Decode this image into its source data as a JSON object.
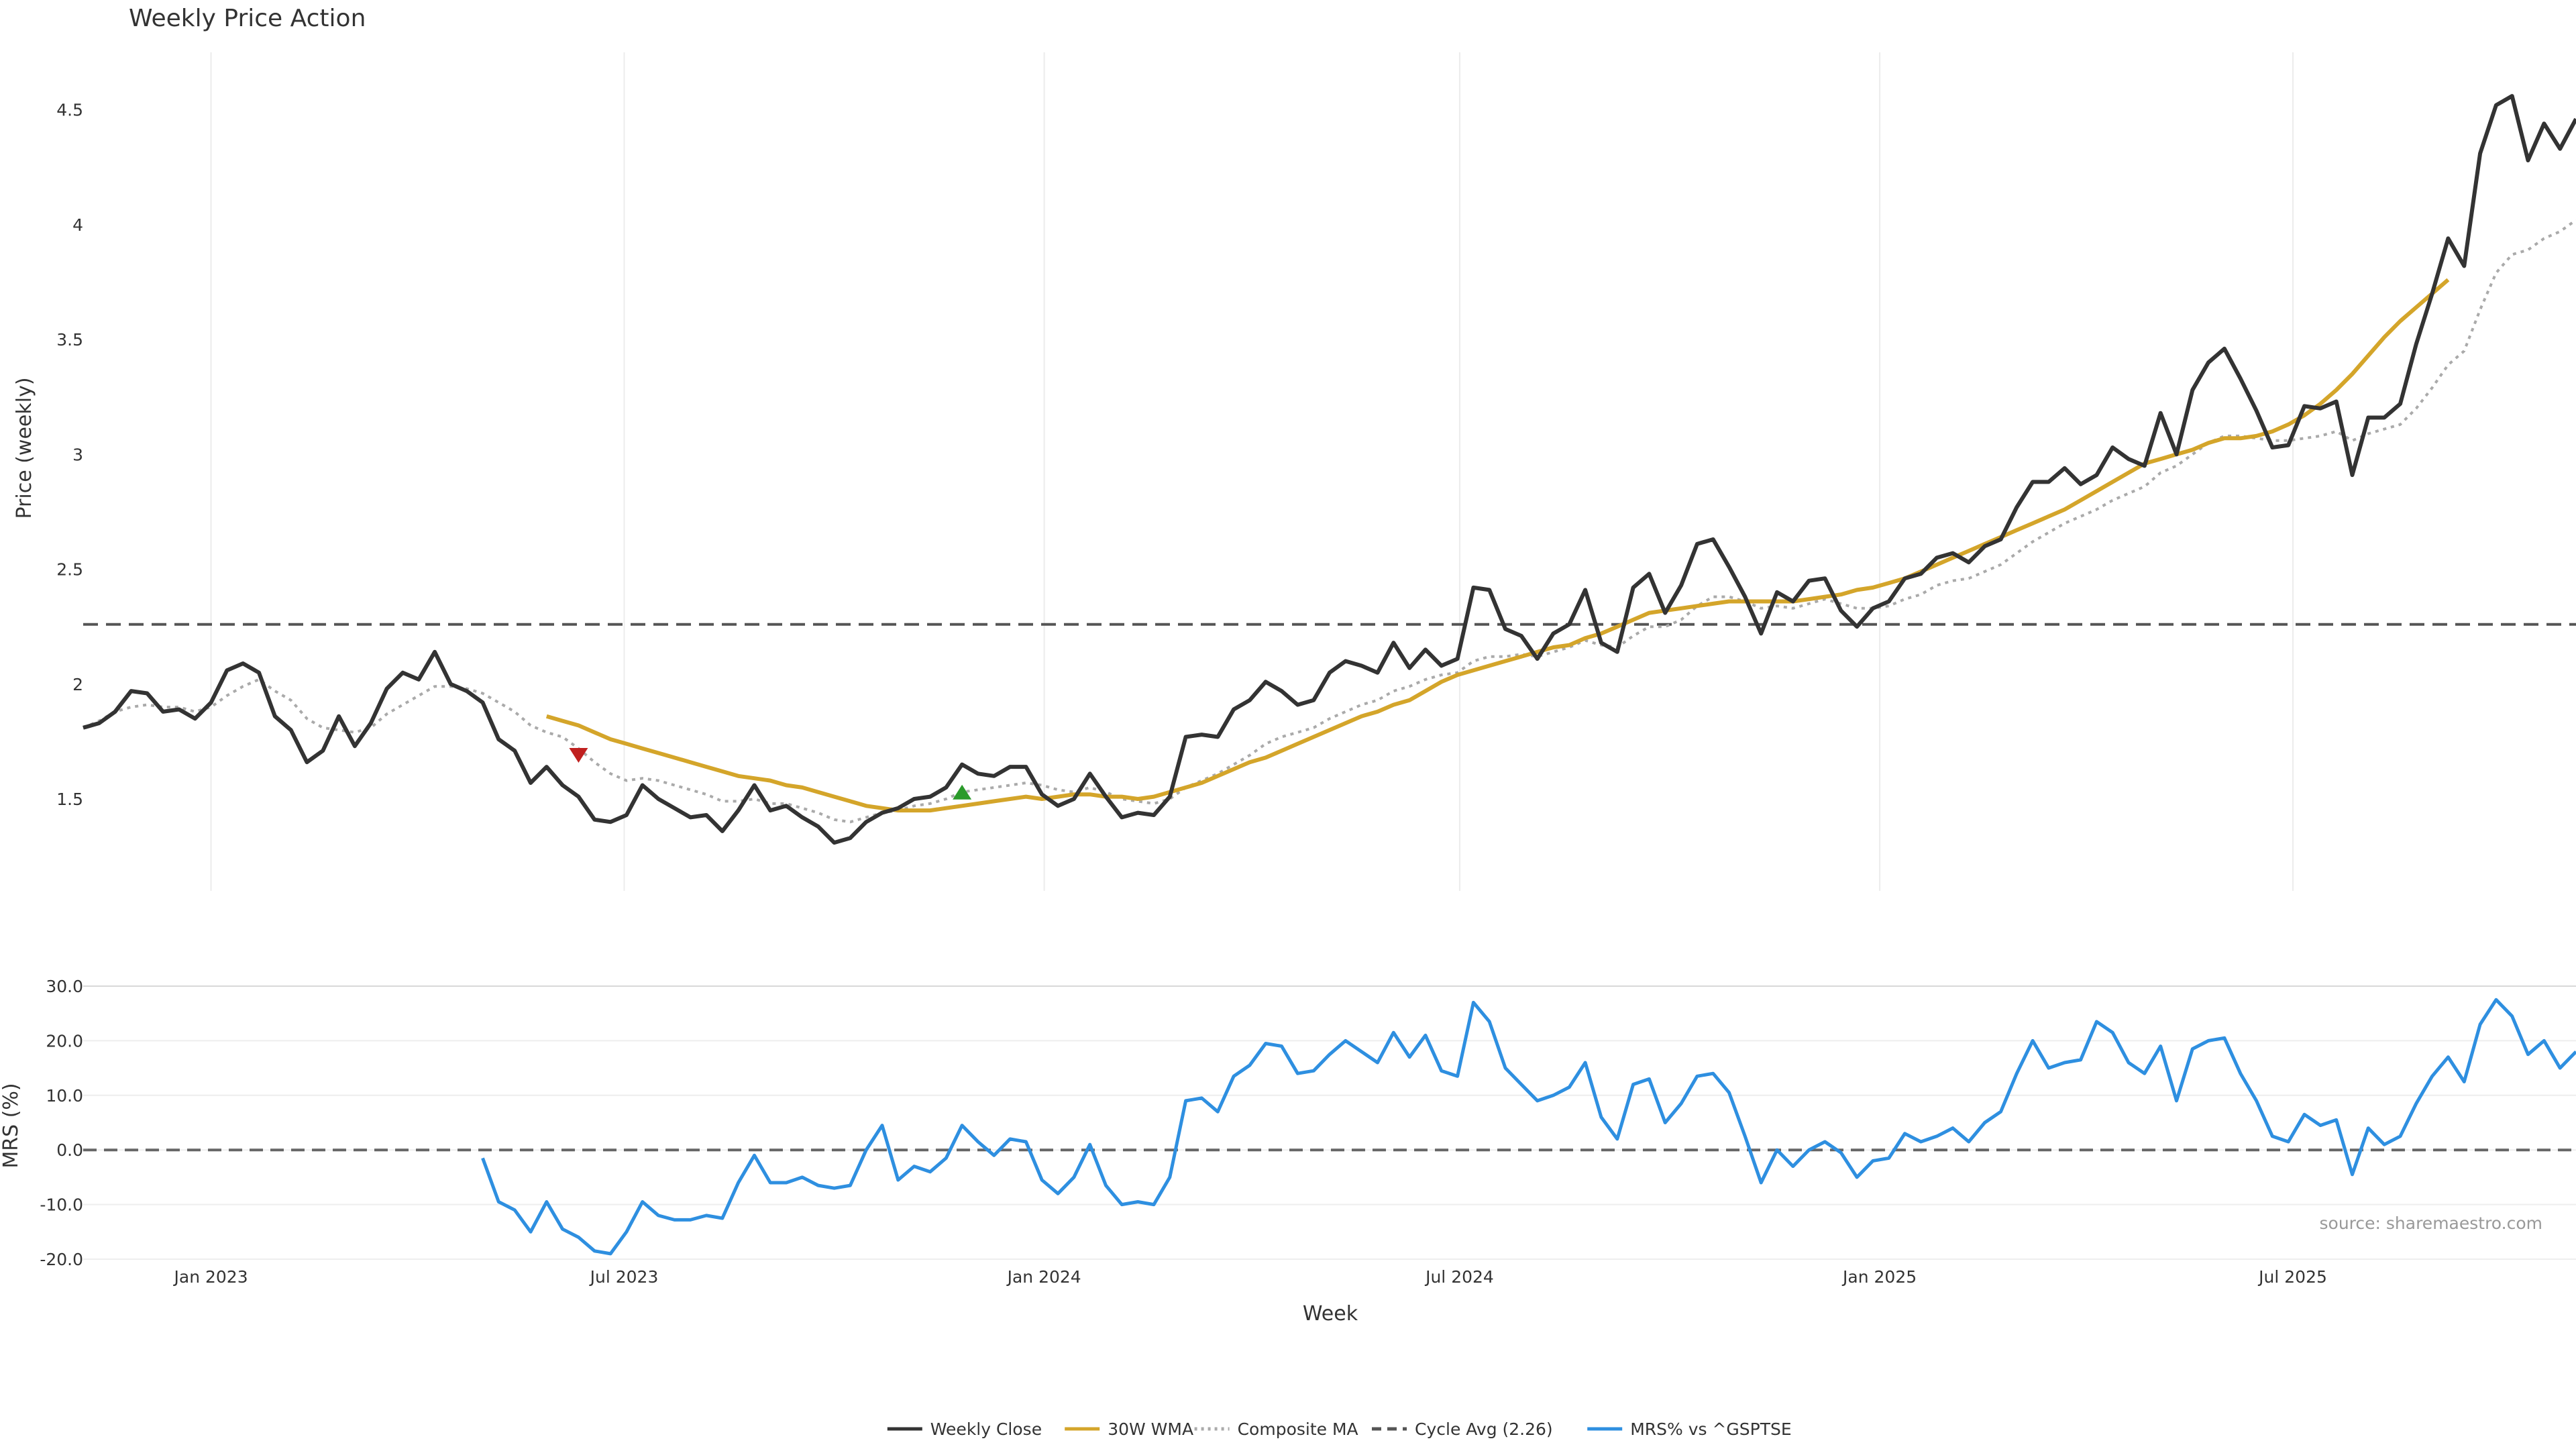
{
  "chart_data": [
    {
      "type": "line",
      "title": "Weekly Price Action",
      "ylabel": "Price (weekly)",
      "ylim": [
        1.1,
        4.75
      ],
      "yticks": [
        "1.5",
        "2",
        "2.5",
        "3",
        "3.5",
        "4",
        "4.5"
      ],
      "x_start": "2022-11-06",
      "x_end": "2025-10-26",
      "grid": "vertical",
      "series": [
        {
          "name": "Weekly Close",
          "color": "#333333",
          "style": "solid",
          "values": [
            1.81,
            1.83,
            1.88,
            1.97,
            1.96,
            1.88,
            1.89,
            1.85,
            1.92,
            2.06,
            2.09,
            2.05,
            1.86,
            1.8,
            1.66,
            1.71,
            1.86,
            1.73,
            1.83,
            1.98,
            2.05,
            2.02,
            2.14,
            2.0,
            1.97,
            1.92,
            1.76,
            1.71,
            1.57,
            1.64,
            1.56,
            1.51,
            1.41,
            1.4,
            1.43,
            1.56,
            1.5,
            1.46,
            1.42,
            1.43,
            1.36,
            1.45,
            1.56,
            1.45,
            1.47,
            1.42,
            1.38,
            1.31,
            1.33,
            1.4,
            1.44,
            1.46,
            1.5,
            1.51,
            1.55,
            1.65,
            1.61,
            1.6,
            1.64,
            1.64,
            1.52,
            1.47,
            1.5,
            1.61,
            1.51,
            1.42,
            1.44,
            1.43,
            1.51,
            1.77,
            1.78,
            1.77,
            1.89,
            1.93,
            2.01,
            1.97,
            1.91,
            1.93,
            2.05,
            2.1,
            2.08,
            2.05,
            2.18,
            2.07,
            2.15,
            2.08,
            2.11,
            2.42,
            2.41,
            2.24,
            2.21,
            2.11,
            2.22,
            2.26,
            2.41,
            2.18,
            2.14,
            2.42,
            2.48,
            2.31,
            2.43,
            2.61,
            2.63,
            2.51,
            2.38,
            2.22,
            2.4,
            2.36,
            2.45,
            2.46,
            2.32,
            2.25,
            2.33,
            2.36,
            2.46,
            2.48,
            2.55,
            2.57,
            2.53,
            2.6,
            2.63,
            2.77,
            2.88,
            2.88,
            2.94,
            2.87,
            2.91,
            3.03,
            2.98,
            2.95,
            3.18,
            3.0,
            3.28,
            3.4,
            3.46,
            3.33,
            3.19,
            3.03,
            3.04,
            3.21,
            3.2,
            3.23,
            2.91,
            3.16,
            3.16,
            3.22,
            3.48,
            3.7,
            3.94,
            3.82,
            4.31,
            4.52,
            4.56,
            4.28,
            4.44,
            4.33,
            4.46
          ]
        },
        {
          "name": "30W WMA",
          "color": "#d4a52a",
          "style": "solid",
          "start_index": 29,
          "values": [
            1.86,
            1.84,
            1.82,
            1.79,
            1.76,
            1.74,
            1.72,
            1.7,
            1.68,
            1.66,
            1.64,
            1.62,
            1.6,
            1.59,
            1.58,
            1.56,
            1.55,
            1.53,
            1.51,
            1.49,
            1.47,
            1.46,
            1.45,
            1.45,
            1.45,
            1.46,
            1.47,
            1.48,
            1.49,
            1.5,
            1.51,
            1.5,
            1.51,
            1.52,
            1.52,
            1.51,
            1.51,
            1.5,
            1.51,
            1.53,
            1.55,
            1.57,
            1.6,
            1.63,
            1.66,
            1.68,
            1.71,
            1.74,
            1.77,
            1.8,
            1.83,
            1.86,
            1.88,
            1.91,
            1.93,
            1.97,
            2.01,
            2.04,
            2.06,
            2.08,
            2.1,
            2.12,
            2.14,
            2.16,
            2.17,
            2.2,
            2.22,
            2.25,
            2.28,
            2.31,
            2.32,
            2.33,
            2.34,
            2.35,
            2.36,
            2.36,
            2.36,
            2.36,
            2.36,
            2.37,
            2.38,
            2.39,
            2.41,
            2.42,
            2.44,
            2.46,
            2.49,
            2.52,
            2.55,
            2.58,
            2.61,
            2.64,
            2.67,
            2.7,
            2.73,
            2.76,
            2.8,
            2.84,
            2.88,
            2.92,
            2.96,
            2.98,
            3.0,
            3.02,
            3.05,
            3.07,
            3.07,
            3.08,
            3.1,
            3.13,
            3.17,
            3.22,
            3.28,
            3.35,
            3.43,
            3.51,
            3.58,
            3.64,
            3.7,
            3.76
          ]
        },
        {
          "name": "Composite MA",
          "color": "#aaaaaa",
          "style": "dotted",
          "values": [
            1.81,
            1.84,
            1.88,
            1.9,
            1.91,
            1.9,
            1.9,
            1.88,
            1.9,
            1.95,
            1.99,
            2.02,
            1.97,
            1.93,
            1.85,
            1.81,
            1.8,
            1.79,
            1.81,
            1.87,
            1.91,
            1.95,
            1.99,
            1.99,
            1.98,
            1.96,
            1.92,
            1.88,
            1.82,
            1.79,
            1.77,
            1.72,
            1.66,
            1.61,
            1.58,
            1.59,
            1.58,
            1.56,
            1.54,
            1.52,
            1.49,
            1.49,
            1.5,
            1.48,
            1.48,
            1.46,
            1.44,
            1.41,
            1.4,
            1.42,
            1.44,
            1.45,
            1.47,
            1.48,
            1.5,
            1.53,
            1.54,
            1.55,
            1.56,
            1.57,
            1.56,
            1.54,
            1.53,
            1.55,
            1.53,
            1.5,
            1.49,
            1.48,
            1.5,
            1.55,
            1.58,
            1.61,
            1.65,
            1.69,
            1.74,
            1.77,
            1.79,
            1.81,
            1.85,
            1.88,
            1.91,
            1.93,
            1.97,
            1.99,
            2.02,
            2.04,
            2.05,
            2.1,
            2.12,
            2.12,
            2.13,
            2.12,
            2.14,
            2.16,
            2.19,
            2.17,
            2.16,
            2.21,
            2.25,
            2.25,
            2.28,
            2.34,
            2.38,
            2.38,
            2.36,
            2.33,
            2.34,
            2.33,
            2.35,
            2.37,
            2.35,
            2.33,
            2.33,
            2.34,
            2.37,
            2.39,
            2.43,
            2.45,
            2.46,
            2.49,
            2.52,
            2.57,
            2.62,
            2.66,
            2.7,
            2.73,
            2.76,
            2.8,
            2.83,
            2.86,
            2.92,
            2.95,
            3.0,
            3.05,
            3.08,
            3.08,
            3.07,
            3.06,
            3.06,
            3.07,
            3.08,
            3.1,
            3.06,
            3.09,
            3.11,
            3.13,
            3.2,
            3.29,
            3.39,
            3.45,
            3.63,
            3.79,
            3.87,
            3.89,
            3.94,
            3.97,
            4.02
          ]
        },
        {
          "name": "Cycle Avg (2.26)",
          "color": "#555555",
          "style": "dashed",
          "value": 2.26
        }
      ],
      "markers": [
        {
          "type": "sell",
          "color": "#c0201f",
          "shape": "triangle-down",
          "index": 31,
          "y": 1.69
        },
        {
          "type": "buy",
          "color": "#2a9a2a",
          "shape": "triangle-up",
          "index": 55,
          "y": 1.53
        }
      ]
    },
    {
      "type": "line",
      "ylabel": "MRS (%)",
      "xlabel": "Week",
      "ylim": [
        -20.0,
        30.0
      ],
      "yticks": [
        "-20.0",
        "-10.0",
        "0.0",
        "10.0",
        "20.0",
        "30.0"
      ],
      "xticks": [
        "Jan 2023",
        "Jul 2023",
        "Jan 2024",
        "Jul 2024",
        "Jan 2025",
        "Jul 2025"
      ],
      "reference_line": 0.0,
      "series": [
        {
          "name": "MRS% vs ^GSPTSE",
          "color": "#2e8fe0",
          "style": "solid",
          "start_index": 25,
          "values": [
            -1.5,
            -9.5,
            -11.0,
            -15.0,
            -9.5,
            -14.5,
            -16.0,
            -18.5,
            -19.0,
            -15.0,
            -9.5,
            -12.0,
            -12.8,
            -12.8,
            -12.0,
            -12.5,
            -6.0,
            -1.0,
            -6.0,
            -6.0,
            -5.0,
            -6.5,
            -7.0,
            -6.5,
            0.0,
            4.5,
            -5.5,
            -3.0,
            -4.0,
            -1.5,
            4.5,
            1.5,
            -1.0,
            2.0,
            1.5,
            -5.5,
            -8.0,
            -5.0,
            1.0,
            -6.5,
            -10.0,
            -9.5,
            -10.0,
            -5.0,
            9.0,
            9.5,
            7.0,
            13.5,
            15.5,
            19.5,
            19.0,
            14.0,
            14.5,
            17.5,
            20.0,
            18.0,
            16.0,
            21.5,
            17.0,
            21.0,
            14.5,
            13.5,
            27.0,
            23.5,
            15.0,
            12.0,
            9.0,
            10.0,
            11.5,
            16.0,
            6.0,
            2.0,
            12.0,
            13.0,
            5.0,
            8.5,
            13.5,
            14.0,
            10.5,
            2.5,
            -6.0,
            0.0,
            -3.0,
            0.0,
            1.5,
            -0.5,
            -5.0,
            -2.0,
            -1.5,
            3.0,
            1.5,
            2.5,
            4.0,
            1.5,
            5.0,
            7.0,
            14.0,
            20.0,
            15.0,
            16.0,
            16.5,
            23.5,
            21.5,
            16.0,
            14.0,
            19.0,
            9.0,
            18.5,
            20.0,
            20.5,
            14.0,
            9.0,
            2.5,
            1.5,
            6.5,
            4.5,
            5.5,
            -4.5,
            4.0,
            1.0,
            2.5,
            8.5,
            13.5,
            17.0,
            12.5,
            23.0,
            27.5,
            24.5,
            17.5,
            20.0,
            15.0,
            18.0
          ]
        }
      ]
    }
  ],
  "legend": [
    {
      "label": "Weekly Close",
      "color": "#333333",
      "style": "solid"
    },
    {
      "label": "30W WMA",
      "color": "#d4a52a",
      "style": "solid"
    },
    {
      "label": "Composite MA",
      "color": "#aaaaaa",
      "style": "dotted"
    },
    {
      "label": "Cycle Avg (2.26)",
      "color": "#555555",
      "style": "dashed"
    },
    {
      "label": "MRS% vs ^GSPTSE",
      "color": "#2e8fe0",
      "style": "solid"
    }
  ],
  "legend_position": "bottom-center",
  "source": "source: sharemaestro.com"
}
